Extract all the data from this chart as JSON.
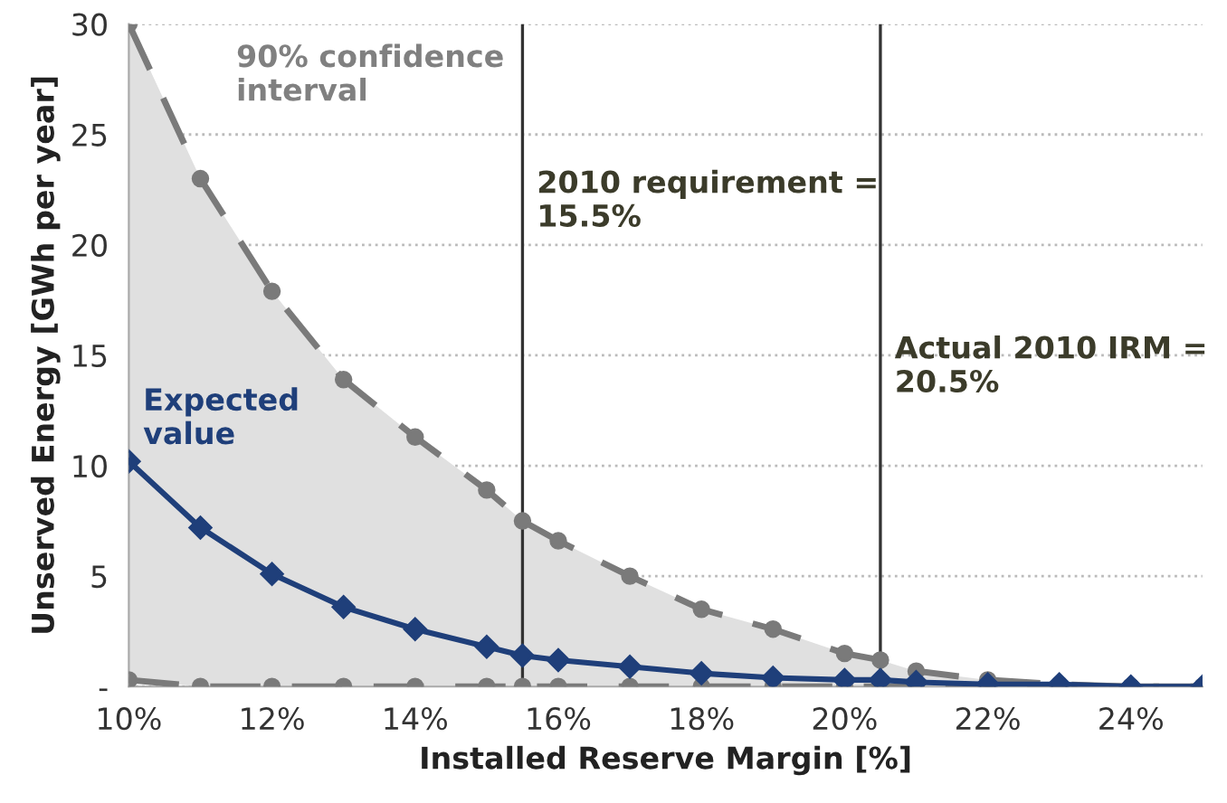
{
  "chart_data": {
    "type": "line",
    "xlabel": "Installed Reserve Margin [%]",
    "ylabel": "Unserved Energy [GWh per year]",
    "x": [
      10,
      11,
      12,
      13,
      14,
      15,
      15.5,
      16,
      17,
      18,
      19,
      20,
      20.5,
      21,
      22,
      23,
      24,
      25
    ],
    "series": [
      {
        "name": "Expected value",
        "color": "#1f3f7a",
        "marker": "diamond",
        "line_style": "solid",
        "values": [
          10.2,
          7.2,
          5.1,
          3.6,
          2.6,
          1.8,
          1.4,
          1.2,
          0.9,
          0.6,
          0.4,
          0.3,
          0.3,
          0.2,
          0.1,
          0.1,
          0,
          0
        ],
        "lower": [
          0.3,
          0,
          0,
          0,
          0,
          0,
          0,
          0,
          0,
          0,
          0,
          0,
          0,
          0,
          0,
          0,
          0,
          0
        ],
        "upper": [
          30,
          23,
          17.9,
          13.9,
          11.3,
          8.9,
          7.5,
          6.6,
          5.0,
          3.5,
          2.6,
          1.5,
          1.2,
          0.7,
          0.3,
          0.1,
          0,
          0
        ]
      },
      {
        "color": "#7a7a7a",
        "marker": "circle",
        "line_style": "dashed",
        "values": [
          30,
          23,
          17.9,
          13.9,
          11.3,
          8.9,
          7.5,
          6.6,
          5.0,
          3.5,
          2.6,
          1.5,
          1.2,
          0.7,
          0.3,
          0.1,
          0,
          0
        ]
      },
      {
        "color": "#7a7a7a",
        "marker": "circle",
        "line_style": "dashed",
        "values": [
          0.3,
          0,
          0,
          0,
          0,
          0,
          0,
          0,
          0,
          0,
          0,
          0,
          0,
          0,
          0,
          0,
          0,
          0
        ]
      }
    ],
    "annotations": [
      "90% confidence interval"
    ],
    "ref_lines": [
      {
        "axis": "x",
        "value": 15.5,
        "label": "2010 requirement = 15.5%",
        "color": "#333333"
      },
      {
        "axis": "x",
        "value": 20.5,
        "label": "Actual 2010 IRM = 20.5%",
        "color": "#333333"
      }
    ],
    "xlim": [
      10,
      25
    ],
    "xticks": [
      {
        "value": 10,
        "label": "10%"
      },
      {
        "value": 12,
        "label": "12%"
      },
      {
        "value": 14,
        "label": "14%"
      },
      {
        "value": 16,
        "label": "16%"
      },
      {
        "value": 18,
        "label": "18%"
      },
      {
        "value": 20,
        "label": "20%"
      },
      {
        "value": 22,
        "label": "22%"
      },
      {
        "value": 24,
        "label": "24%"
      }
    ],
    "ylim": [
      0,
      30
    ],
    "yticks": [
      {
        "value": 0,
        "label": "-"
      },
      5,
      10,
      15,
      20,
      25,
      30
    ],
    "grid": "y",
    "legend": false
  }
}
